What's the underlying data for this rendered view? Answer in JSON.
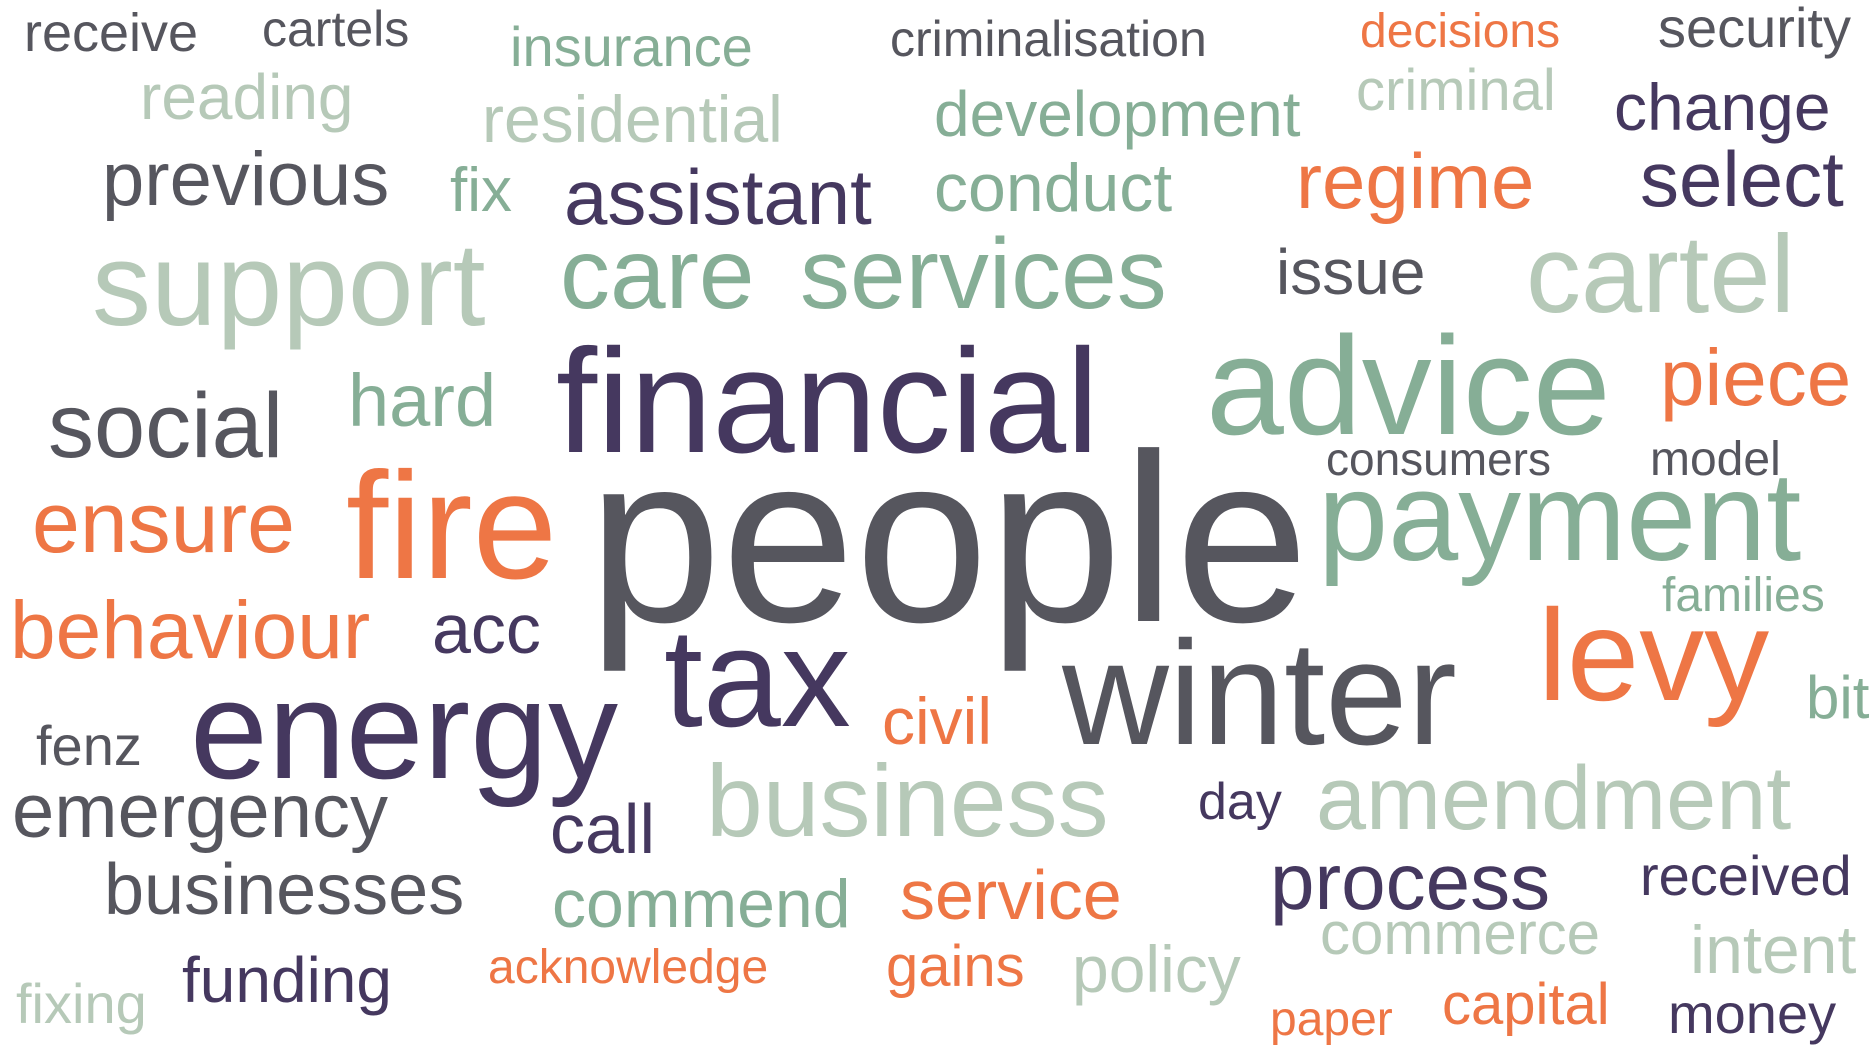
{
  "colors": {
    "grey": "#56565e",
    "purple": "#45385f",
    "green": "#86ae96",
    "light_green": "#b6c9b8",
    "orange": "#ee7645"
  },
  "words": {
    "receive": "receive",
    "cartels": "cartels",
    "insurance": "insurance",
    "criminalisation": "criminalisation",
    "decisions": "decisions",
    "security": "security",
    "reading": "reading",
    "residential": "residential",
    "development": "development",
    "criminal": "criminal",
    "change": "change",
    "previous": "previous",
    "fix": "fix",
    "assistant": "assistant",
    "conduct": "conduct",
    "regime": "regime",
    "select": "select",
    "support": "support",
    "care": "care",
    "services": "services",
    "issue": "issue",
    "cartel": "cartel",
    "financial": "financial",
    "advice": "advice",
    "social": "social",
    "hard": "hard",
    "piece": "piece",
    "consumers": "consumers",
    "model": "model",
    "ensure": "ensure",
    "fire": "fire",
    "people": "people",
    "payment": "payment",
    "families": "families",
    "behaviour": "behaviour",
    "acc": "acc",
    "tax": "tax",
    "winter": "winter",
    "levy": "levy",
    "energy": "energy",
    "civil": "civil",
    "bit": "bit",
    "fenz": "fenz",
    "emergency": "emergency",
    "business": "business",
    "amendment": "amendment",
    "day": "day",
    "call": "call",
    "process": "process",
    "businesses": "businesses",
    "commend": "commend",
    "service": "service",
    "received": "received",
    "commerce": "commerce",
    "intent": "intent",
    "funding": "funding",
    "acknowledge": "acknowledge",
    "gains": "gains",
    "policy": "policy",
    "fixing": "fixing",
    "paper": "paper",
    "capital": "capital",
    "money": "money"
  }
}
